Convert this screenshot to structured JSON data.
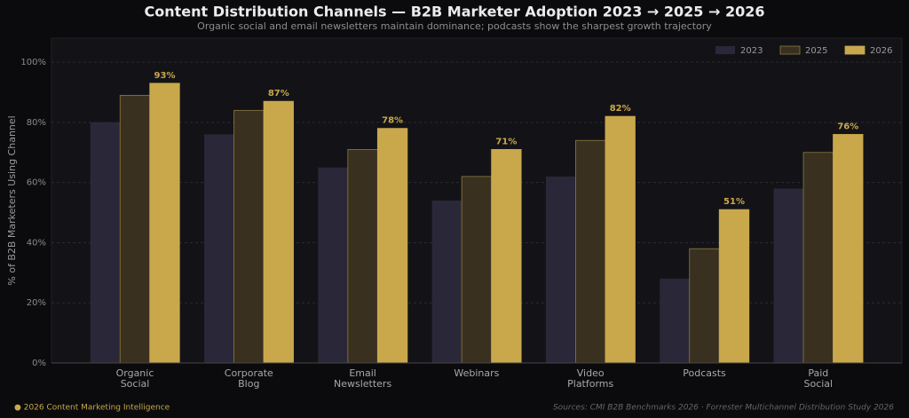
{
  "chart_data": {
    "type": "bar",
    "title": "Content Distribution Channels  —  B2B Marketer Adoption 2023 → 2025 → 2026",
    "subtitle": "Organic social and email newsletters maintain dominance; podcasts show the sharpest growth trajectory",
    "y_label": "% of B2B Marketers Using Channel",
    "categories": [
      "Organic\nSocial",
      "Corporate\nBlog",
      "Email\nNewsletters",
      "Webinars",
      "Video\nPlatforms",
      "Podcasts",
      "Paid\nSocial"
    ],
    "series": [
      {
        "name": "2023",
        "color": "#2a2838",
        "values": [
          80,
          76,
          65,
          54,
          62,
          28,
          58
        ]
      },
      {
        "name": "2025",
        "color": "#3a3020",
        "values": [
          89,
          84,
          71,
          62,
          74,
          38,
          70
        ]
      },
      {
        "name": "2026",
        "color": "#c9a84c",
        "values": [
          93,
          87,
          78,
          71,
          82,
          51,
          76
        ],
        "value_labels": [
          "93%",
          "87%",
          "78%",
          "71%",
          "82%",
          "51%",
          "76%"
        ]
      }
    ],
    "ylim": [
      0,
      108
    ],
    "yticks": [
      {
        "value": 0,
        "label": "0%"
      },
      {
        "value": 20,
        "label": "20%"
      },
      {
        "value": 40,
        "label": "40%"
      },
      {
        "value": 60,
        "label": "60%"
      },
      {
        "value": 80,
        "label": "80%"
      },
      {
        "value": 100,
        "label": "100%"
      }
    ],
    "grid": true,
    "legend": "upper right",
    "footer_left": "● 2026 Content Marketing Intelligence",
    "footer_right": "Sources: CMI B2B Benchmarks 2026 · Forrester Multichannel Distribution Study 2026"
  }
}
